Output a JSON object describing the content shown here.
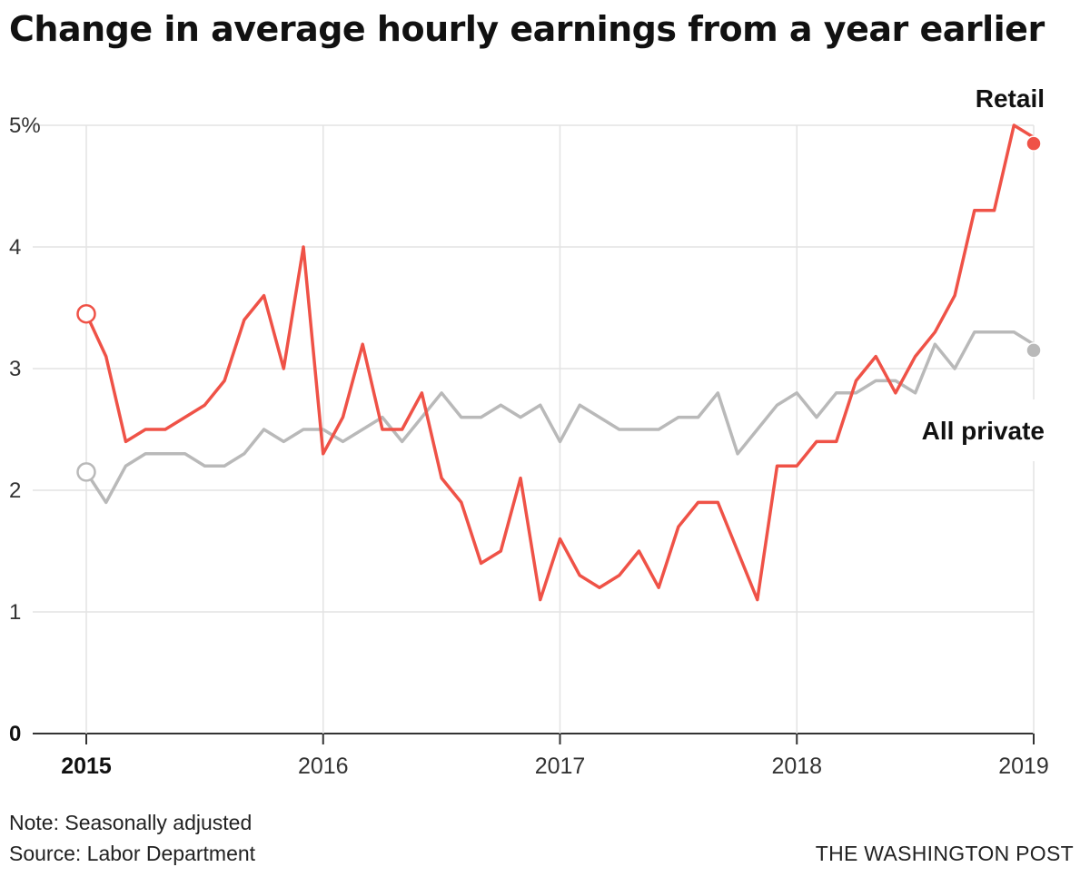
{
  "title": "Change in average hourly earnings from a year earlier",
  "footer": {
    "note": "Note: Seasonally adjusted",
    "source": "Source: Labor Department",
    "credit": "THE WASHINGTON POST"
  },
  "colors": {
    "retail": "#ef5247",
    "all_private": "#b9b9b9",
    "grid": "#e3e3e3",
    "baseline": "#333333"
  },
  "chart_data": {
    "type": "line",
    "title": "Change in average hourly earnings from a year earlier",
    "xlabel": "",
    "ylabel": "",
    "x_start": "2015-01",
    "x_end": "2019-01",
    "xlim": [
      "2015-01",
      "2019-01"
    ],
    "ylim": [
      0,
      5
    ],
    "y_ticks": [
      {
        "value": 0,
        "label": "0",
        "bold": true
      },
      {
        "value": 1,
        "label": "1",
        "bold": false
      },
      {
        "value": 2,
        "label": "2",
        "bold": false
      },
      {
        "value": 3,
        "label": "3",
        "bold": false
      },
      {
        "value": 4,
        "label": "4",
        "bold": false
      },
      {
        "value": 5,
        "label": "5%",
        "bold": false
      }
    ],
    "x_ticks": [
      {
        "value": "2015-01",
        "label": "2015",
        "bold": true
      },
      {
        "value": "2016-01",
        "label": "2016",
        "bold": false
      },
      {
        "value": "2017-01",
        "label": "2017",
        "bold": false
      },
      {
        "value": "2018-01",
        "label": "2018",
        "bold": false
      },
      {
        "value": "2019-01",
        "label": "2019",
        "bold": false
      }
    ],
    "grid": true,
    "series": [
      {
        "name": "Retail",
        "key": "retail",
        "start_marker": {
          "value": 3.45,
          "style": "open"
        },
        "end_marker": {
          "value": 4.85,
          "style": "filled"
        },
        "values": [
          3.45,
          3.1,
          2.4,
          2.5,
          2.5,
          2.6,
          2.7,
          2.9,
          3.4,
          3.6,
          3.0,
          4.0,
          2.3,
          2.6,
          3.2,
          2.5,
          2.5,
          2.8,
          2.1,
          1.9,
          1.4,
          1.5,
          2.1,
          1.1,
          1.6,
          1.3,
          1.2,
          1.3,
          1.5,
          1.2,
          1.7,
          1.9,
          1.9,
          1.5,
          1.1,
          2.2,
          2.2,
          2.4,
          2.4,
          2.9,
          3.1,
          2.8,
          3.1,
          3.3,
          3.6,
          4.3,
          4.3,
          5.0,
          4.9
        ]
      },
      {
        "name": "All private",
        "key": "all_private",
        "start_marker": {
          "value": 2.15,
          "style": "open"
        },
        "end_marker": {
          "value": 3.15,
          "style": "filled"
        },
        "values": [
          2.15,
          1.9,
          2.2,
          2.3,
          2.3,
          2.3,
          2.2,
          2.2,
          2.3,
          2.5,
          2.4,
          2.5,
          2.5,
          2.4,
          2.5,
          2.6,
          2.4,
          2.6,
          2.8,
          2.6,
          2.6,
          2.7,
          2.6,
          2.7,
          2.4,
          2.7,
          2.6,
          2.5,
          2.5,
          2.5,
          2.6,
          2.6,
          2.8,
          2.3,
          2.5,
          2.7,
          2.8,
          2.6,
          2.8,
          2.8,
          2.9,
          2.9,
          2.8,
          3.2,
          3.0,
          3.3,
          3.3,
          3.3,
          3.2
        ]
      }
    ]
  }
}
